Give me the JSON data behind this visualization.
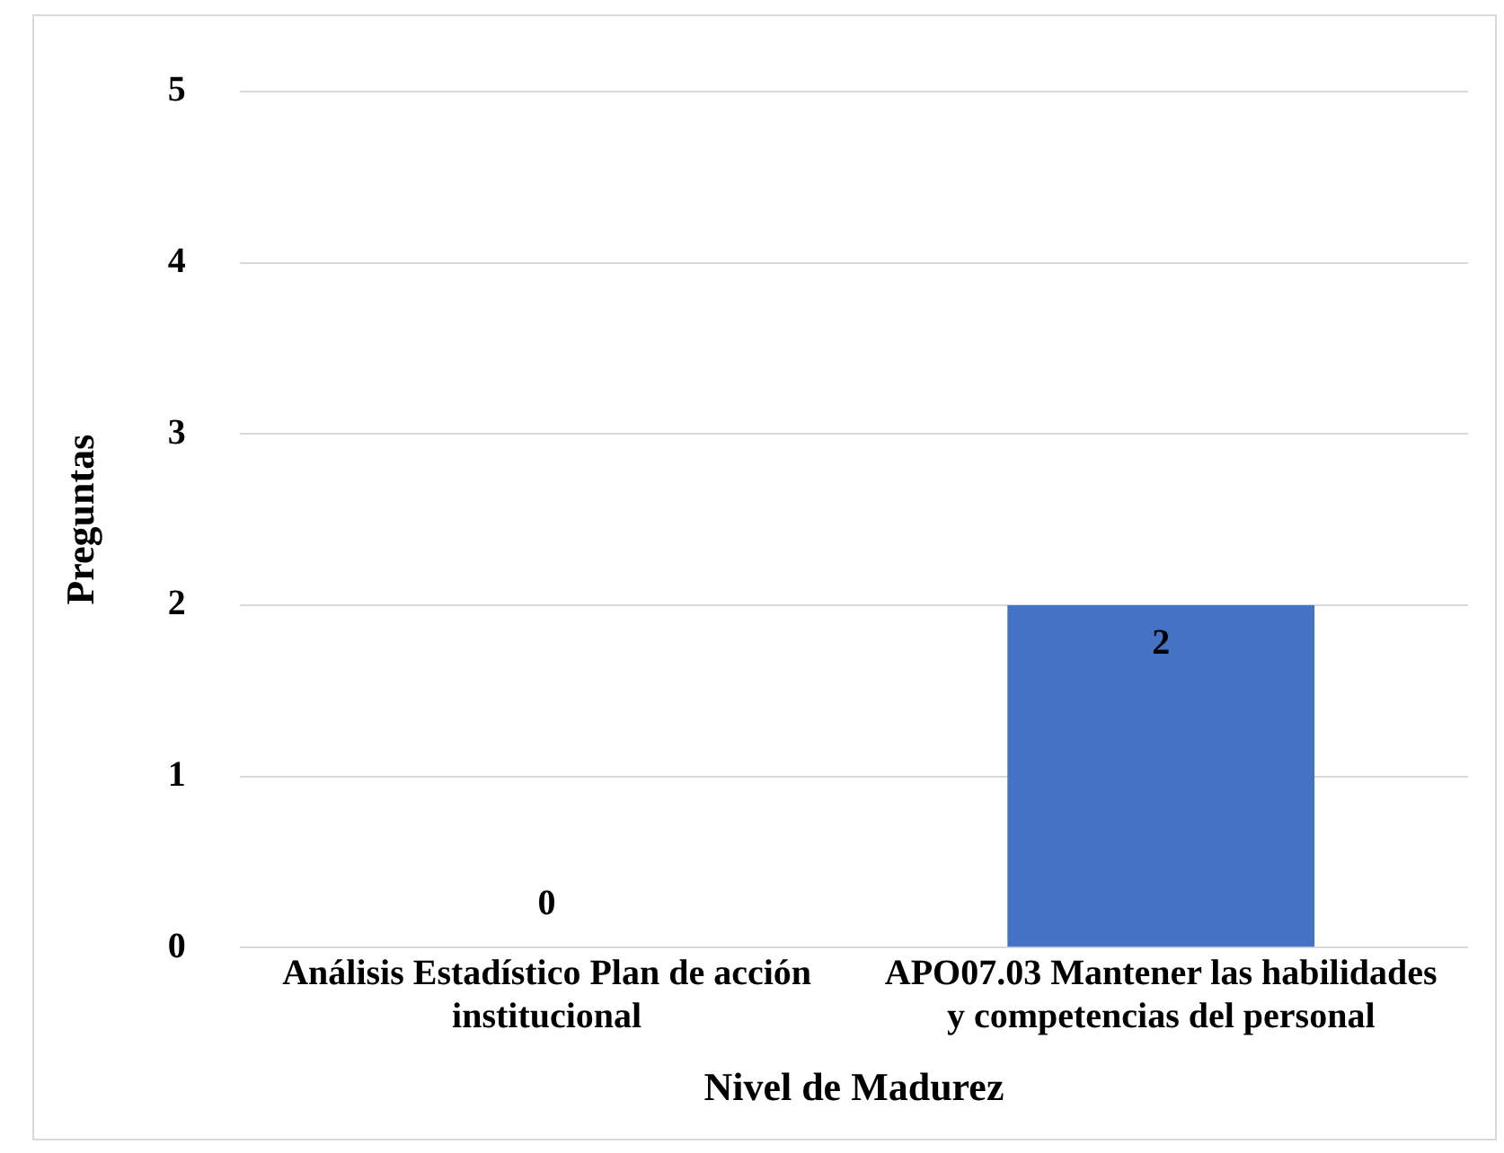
{
  "chart_data": {
    "type": "bar",
    "xlabel": "Nivel de Madurez",
    "ylabel": "Preguntas",
    "categories": [
      "Análisis Estadístico Plan de acción institucional",
      "APO07.03 Mantener las habilidades y competencias del personal"
    ],
    "values": [
      0,
      2
    ],
    "color": "#4472c4",
    "ylim": [
      0,
      5
    ],
    "yticks": [
      0,
      1,
      2,
      3,
      4,
      5
    ],
    "grid": "y",
    "legend": false,
    "data_labels": true
  }
}
